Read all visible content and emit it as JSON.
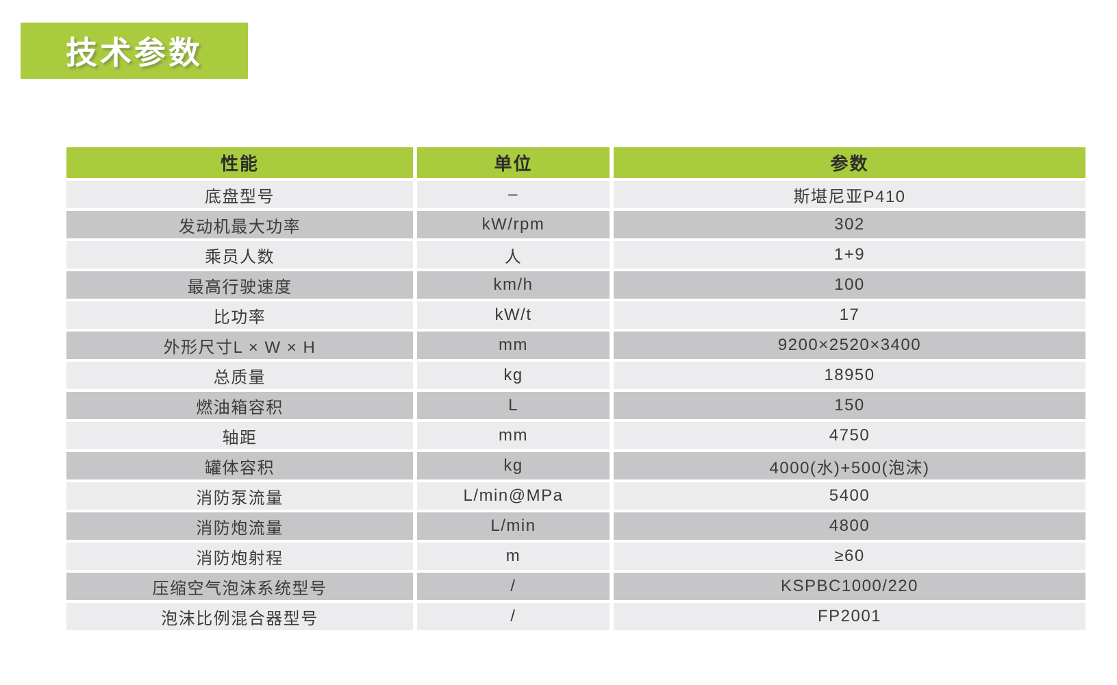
{
  "colors": {
    "accent_green": "#a9cb3d",
    "row_light": "#ececee",
    "row_dark": "#c6c6c8",
    "text": "#3b3b3b"
  },
  "title": {
    "label": "技术参数"
  },
  "table": {
    "headers": [
      "性能",
      "单位",
      "参数"
    ],
    "rows": [
      {
        "name": "底盘型号",
        "unit": "–",
        "value": "斯堪尼亚P410"
      },
      {
        "name": "发动机最大功率",
        "unit": "kW/rpm",
        "value": "302"
      },
      {
        "name": "乘员人数",
        "unit": "人",
        "value": "1+9"
      },
      {
        "name": "最高行驶速度",
        "unit": "km/h",
        "value": "100"
      },
      {
        "name": "比功率",
        "unit": "kW/t",
        "value": "17"
      },
      {
        "name": "外形尺寸L × W × H",
        "unit": "mm",
        "value": "9200×2520×3400"
      },
      {
        "name": "总质量",
        "unit": "kg",
        "value": "18950"
      },
      {
        "name": "燃油箱容积",
        "unit": "L",
        "value": "150"
      },
      {
        "name": "轴距",
        "unit": "mm",
        "value": "4750"
      },
      {
        "name": "罐体容积",
        "unit": "kg",
        "value": "4000(水)+500(泡沫)"
      },
      {
        "name": "消防泵流量",
        "unit": "L/min@MPa",
        "value": "5400"
      },
      {
        "name": "消防炮流量",
        "unit": "L/min",
        "value": "4800"
      },
      {
        "name": "消防炮射程",
        "unit": "m",
        "value": "≥60"
      },
      {
        "name": "压缩空气泡沫系统型号",
        "unit": "/",
        "value": "KSPBC1000/220"
      },
      {
        "name": "泡沫比例混合器型号",
        "unit": "/",
        "value": "FP2001"
      }
    ]
  }
}
